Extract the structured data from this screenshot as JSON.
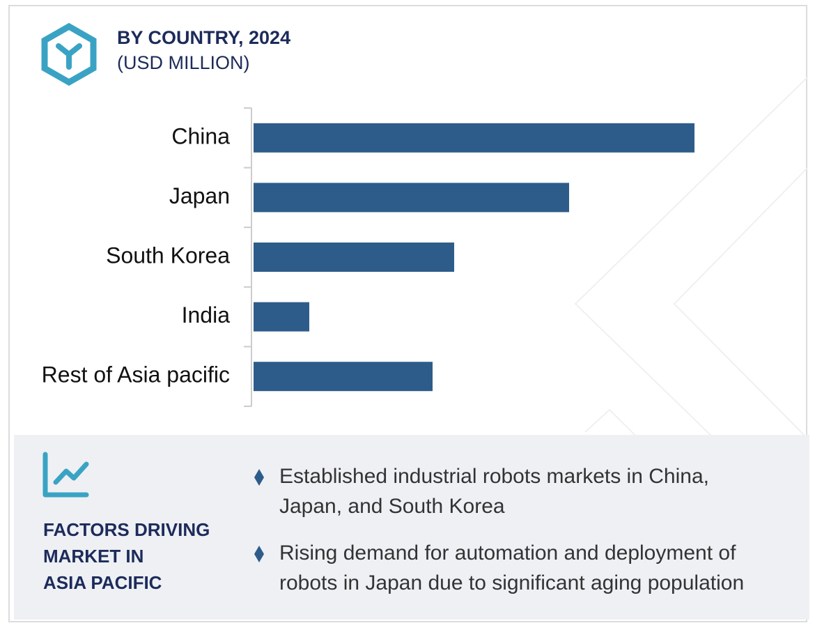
{
  "chart_data": {
    "type": "bar",
    "orientation": "horizontal",
    "title": "BY COUNTRY, 2024",
    "subtitle": "(USD MILLION)",
    "categories": [
      "China",
      "Japan",
      "South Korea",
      "India",
      "Rest of Asia pacific"
    ],
    "values": [
      633,
      453,
      288,
      80,
      257
    ],
    "color": "#2e5c8a"
  },
  "factors": {
    "title": [
      "FACTORS DRIVING",
      "MARKET IN",
      "ASIA PACIFIC"
    ],
    "points": [
      [
        "Established industrial robots markets in China,",
        "Japan, and South Korea"
      ],
      [
        "Rising demand for automation and deployment of",
        "robots in Japan due to significant aging population"
      ]
    ]
  }
}
